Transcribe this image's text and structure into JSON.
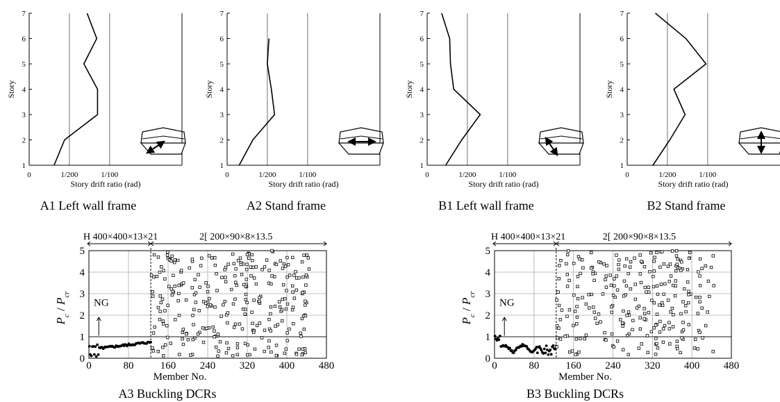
{
  "chart_data": [
    {
      "id": "A1",
      "type": "line",
      "caption": "A1 Left wall frame",
      "xlabel": "Story drift ratio (rad)",
      "ylabel": "Story",
      "xlim": [
        0,
        0.019
      ],
      "ylim": [
        1,
        7
      ],
      "xticks": [
        {
          "v": 0,
          "label": "0"
        },
        {
          "v": 0.005,
          "label": "1/200"
        },
        {
          "v": 0.01,
          "label": "1/100"
        }
      ],
      "yticks": [
        {
          "v": 1,
          "label": "1"
        },
        {
          "v": 2,
          "label": "2"
        },
        {
          "v": 3,
          "label": "3"
        },
        {
          "v": 4,
          "label": "4"
        },
        {
          "v": 5,
          "label": "5"
        },
        {
          "v": 6,
          "label": "6"
        },
        {
          "v": 7,
          "label": "7"
        }
      ],
      "gridlines_x": [
        0.005,
        0.01
      ],
      "series": [
        {
          "x": [
            0.0031,
            0.0044,
            0.0085,
            0.0085,
            0.0068,
            0.0084,
            0.0072
          ],
          "y": [
            1,
            2,
            3,
            4,
            5,
            6,
            7
          ]
        }
      ],
      "icon": "wall-left-diagonal"
    },
    {
      "id": "A2",
      "type": "line",
      "caption": "A2 Stand frame",
      "xlabel": "Story drift ratio (rad)",
      "ylabel": "Story",
      "xlim": [
        0,
        0.019
      ],
      "ylim": [
        1,
        7
      ],
      "xticks": [
        {
          "v": 0,
          "label": "0"
        },
        {
          "v": 0.005,
          "label": "1/200"
        },
        {
          "v": 0.01,
          "label": "1/100"
        }
      ],
      "yticks": [
        {
          "v": 1,
          "label": "1"
        },
        {
          "v": 2,
          "label": "2"
        },
        {
          "v": 3,
          "label": "3"
        },
        {
          "v": 4,
          "label": "4"
        },
        {
          "v": 5,
          "label": "5"
        },
        {
          "v": 6,
          "label": "6"
        },
        {
          "v": 7,
          "label": "7"
        }
      ],
      "gridlines_x": [
        0.005,
        0.01
      ],
      "series": [
        {
          "x": [
            0.0015,
            0.0032,
            0.0059,
            0.0055,
            0.005,
            0.0052
          ],
          "y": [
            1,
            2,
            3,
            4,
            5,
            6
          ]
        }
      ],
      "icon": "stand-horizontal"
    },
    {
      "id": "B1",
      "type": "line",
      "caption": "B1 Left wall frame",
      "xlabel": "Story drift ratio (rad)",
      "ylabel": "Story",
      "xlim": [
        0,
        0.019
      ],
      "ylim": [
        1,
        7
      ],
      "xticks": [
        {
          "v": 0,
          "label": "0"
        },
        {
          "v": 0.005,
          "label": "1/200"
        },
        {
          "v": 0.01,
          "label": "1/100"
        }
      ],
      "yticks": [
        {
          "v": 1,
          "label": "1"
        },
        {
          "v": 2,
          "label": "2"
        },
        {
          "v": 3,
          "label": "3"
        },
        {
          "v": 4,
          "label": "4"
        },
        {
          "v": 5,
          "label": "5"
        },
        {
          "v": 6,
          "label": "6"
        },
        {
          "v": 7,
          "label": "7"
        }
      ],
      "gridlines_x": [
        0.005,
        0.01
      ],
      "series": [
        {
          "x": [
            0.0023,
            0.0043,
            0.0066,
            0.0033,
            0.0029,
            0.0028,
            0.0018
          ],
          "y": [
            1,
            2,
            3,
            4,
            5,
            6,
            7
          ]
        }
      ],
      "icon": "wall-left-diagonal-down"
    },
    {
      "id": "B2",
      "type": "line",
      "caption": "B2 Stand frame",
      "xlabel": "Story drift ratio (rad)",
      "ylabel": "Story",
      "xlim": [
        0,
        0.019
      ],
      "ylim": [
        1,
        7
      ],
      "xticks": [
        {
          "v": 0,
          "label": "0"
        },
        {
          "v": 0.005,
          "label": "1/200"
        },
        {
          "v": 0.01,
          "label": "1/100"
        }
      ],
      "yticks": [
        {
          "v": 1,
          "label": "1"
        },
        {
          "v": 2,
          "label": "2"
        },
        {
          "v": 3,
          "label": "3"
        },
        {
          "v": 4,
          "label": "4"
        },
        {
          "v": 5,
          "label": "5"
        },
        {
          "v": 6,
          "label": "6"
        },
        {
          "v": 7,
          "label": "7"
        }
      ],
      "gridlines_x": [
        0.005,
        0.01
      ],
      "series": [
        {
          "x": [
            0.0032,
            0.0053,
            0.0072,
            0.0058,
            0.0098,
            0.0073,
            0.0035
          ],
          "y": [
            1,
            2,
            3,
            4,
            5,
            6,
            7
          ]
        }
      ],
      "icon": "stand-vertical"
    },
    {
      "id": "A3",
      "type": "scatter",
      "caption": "A3 Buckling DCRs",
      "xlabel": "Member No.",
      "ylabel_parts": [
        "P",
        "c",
        " / ",
        "P",
        "cr"
      ],
      "xlim": [
        0,
        480
      ],
      "ylim": [
        0,
        5
      ],
      "xticks": [
        0,
        80,
        160,
        240,
        320,
        400,
        480
      ],
      "yticks": [
        0,
        1,
        2,
        3,
        4,
        5
      ],
      "ng_line": 1.0,
      "ng_label": "NG",
      "divider_x": 125,
      "section1_label": "H 400×400×13×21",
      "section2_label": "2[ 200×90×8×13.5",
      "series": [
        {
          "name": "H-section",
          "marker": "filled-circle",
          "x_range": [
            1,
            125
          ],
          "y_range": [
            0.0,
            0.75
          ],
          "pattern": "A"
        },
        {
          "name": "channel",
          "marker": "open-square",
          "x_range": [
            126,
            445
          ],
          "y_range": [
            0.1,
            5.0
          ],
          "count": 300
        }
      ]
    },
    {
      "id": "B3",
      "type": "scatter",
      "caption": "B3 Buckling DCRs",
      "xlabel": "Member No.",
      "ylabel_parts": [
        "P",
        "c",
        " / ",
        "P",
        "cr"
      ],
      "xlim": [
        0,
        480
      ],
      "ylim": [
        0,
        5
      ],
      "xticks": [
        0,
        80,
        160,
        240,
        320,
        400,
        480
      ],
      "yticks": [
        0,
        1,
        2,
        3,
        4,
        5
      ],
      "ng_line": 1.0,
      "ng_label": "NG",
      "divider_x": 125,
      "section1_label": "H 400×400×13×21",
      "section2_label": "2[ 200×90×8×13.5",
      "series": [
        {
          "name": "H-section",
          "marker": "filled-circle",
          "x_range": [
            1,
            125
          ],
          "y_range": [
            0.0,
            1.1
          ],
          "pattern": "B"
        },
        {
          "name": "channel",
          "marker": "open-square",
          "x_range": [
            126,
            445
          ],
          "y_range": [
            0.1,
            5.0
          ],
          "count": 260
        }
      ]
    }
  ]
}
